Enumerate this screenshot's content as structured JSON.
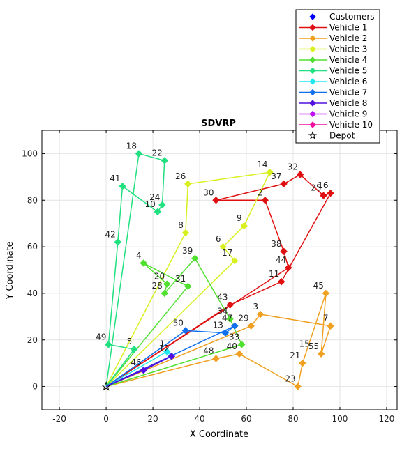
{
  "chart_data": {
    "type": "line",
    "title": "SDVRP",
    "xlabel": "X Coordinate",
    "ylabel": "Y Coordinate",
    "xlim": [
      -20,
      120
    ],
    "ylim": [
      0,
      100
    ],
    "xticks": [
      "-20",
      "0",
      "20",
      "40",
      "60",
      "80",
      "100",
      "120"
    ],
    "yticks": [
      "0",
      "20",
      "40",
      "60",
      "80",
      "100"
    ],
    "grid": true,
    "legend_position": "top-right",
    "depot": {
      "x": 0,
      "y": 0
    },
    "customers": [
      {
        "id": "1",
        "x": 26,
        "y": 15
      },
      {
        "id": "2",
        "x": 68,
        "y": 80
      },
      {
        "id": "3",
        "x": 66,
        "y": 31
      },
      {
        "id": "4",
        "x": 16,
        "y": 53
      },
      {
        "id": "5",
        "x": 12,
        "y": 16
      },
      {
        "id": "6",
        "x": 50,
        "y": 60
      },
      {
        "id": "7",
        "x": 96,
        "y": 26
      },
      {
        "id": "8",
        "x": 34,
        "y": 66
      },
      {
        "id": "9",
        "x": 59,
        "y": 69
      },
      {
        "id": "10",
        "x": 22,
        "y": 75
      },
      {
        "id": "11",
        "x": 75,
        "y": 45
      },
      {
        "id": "12",
        "x": 28,
        "y": 13
      },
      {
        "id": "13",
        "x": 51,
        "y": 23
      },
      {
        "id": "14",
        "x": 70,
        "y": 92
      },
      {
        "id": "15",
        "x": 88,
        "y": 15
      },
      {
        "id": "16",
        "x": 96,
        "y": 83
      },
      {
        "id": "17",
        "x": 55,
        "y": 54
      },
      {
        "id": "18",
        "x": 14,
        "y": 100
      },
      {
        "id": "20",
        "x": 26,
        "y": 44
      },
      {
        "id": "21",
        "x": 84,
        "y": 10
      },
      {
        "id": "22",
        "x": 25,
        "y": 97
      },
      {
        "id": "23",
        "x": 82,
        "y": 0
      },
      {
        "id": "24",
        "x": 24,
        "y": 78
      },
      {
        "id": "25",
        "x": 93,
        "y": 82
      },
      {
        "id": "26",
        "x": 35,
        "y": 87
      },
      {
        "id": "28",
        "x": 25,
        "y": 40
      },
      {
        "id": "29",
        "x": 62,
        "y": 26
      },
      {
        "id": "30",
        "x": 47,
        "y": 80
      },
      {
        "id": "31",
        "x": 35,
        "y": 43
      },
      {
        "id": "32",
        "x": 83,
        "y": 91
      },
      {
        "id": "33",
        "x": 58,
        "y": 18
      },
      {
        "id": "34",
        "x": 53,
        "y": 29
      },
      {
        "id": "37",
        "x": 76,
        "y": 87
      },
      {
        "id": "38",
        "x": 76,
        "y": 58
      },
      {
        "id": "39",
        "x": 38,
        "y": 55
      },
      {
        "id": "40",
        "x": 57,
        "y": 14
      },
      {
        "id": "41",
        "x": 7,
        "y": 86
      },
      {
        "id": "42",
        "x": 5,
        "y": 62
      },
      {
        "id": "43",
        "x": 53,
        "y": 35
      },
      {
        "id": "44",
        "x": 78,
        "y": 51
      },
      {
        "id": "45",
        "x": 94,
        "y": 40
      },
      {
        "id": "46",
        "x": 16,
        "y": 7
      },
      {
        "id": "47",
        "x": 55,
        "y": 26
      },
      {
        "id": "48",
        "x": 47,
        "y": 12
      },
      {
        "id": "49",
        "x": 1,
        "y": 18
      },
      {
        "id": "50",
        "x": 34,
        "y": 24
      },
      {
        "id": "55",
        "x": 92,
        "y": 14
      }
    ],
    "series": [
      {
        "name": "Customers",
        "color": "#0000ff",
        "marker": "diamond",
        "route": []
      },
      {
        "name": "Vehicle 1",
        "color": "#e01010",
        "route": [
          "depot",
          "43",
          "11",
          "16",
          "25",
          "32",
          "37",
          "30",
          "2",
          "38",
          "44",
          "depot"
        ]
      },
      {
        "name": "Vehicle 2",
        "color": "#f0a020",
        "route": [
          "depot",
          "29",
          "3",
          "7",
          "55",
          "45",
          "21",
          "23",
          "40",
          "48",
          "depot"
        ]
      },
      {
        "name": "Vehicle 3",
        "color": "#d8f020",
        "route": [
          "depot",
          "17",
          "6",
          "9",
          "14",
          "26",
          "8",
          "depot"
        ]
      },
      {
        "name": "Vehicle 4",
        "color": "#50e030",
        "route": [
          "depot",
          "33",
          "34",
          "39",
          "28",
          "20",
          "4",
          "31",
          "depot"
        ]
      },
      {
        "name": "Vehicle 5",
        "color": "#20e080",
        "route": [
          "depot",
          "5",
          "49",
          "42",
          "41",
          "10",
          "24",
          "22",
          "18",
          "depot"
        ]
      },
      {
        "name": "Vehicle 6",
        "color": "#20e8f0",
        "route": [
          "depot",
          "1",
          "12",
          "depot"
        ]
      },
      {
        "name": "Vehicle 7",
        "color": "#1070f0",
        "route": [
          "depot",
          "50",
          "13",
          "47",
          "depot"
        ]
      },
      {
        "name": "Vehicle 8",
        "color": "#5010e0",
        "route": [
          "depot",
          "46",
          "12",
          "depot"
        ]
      },
      {
        "name": "Vehicle 9",
        "color": "#c010f0",
        "route": []
      },
      {
        "name": "Vehicle 10",
        "color": "#f010a0",
        "route": []
      },
      {
        "name": "Depot",
        "color": "#000000",
        "marker": "star",
        "route": []
      }
    ]
  }
}
